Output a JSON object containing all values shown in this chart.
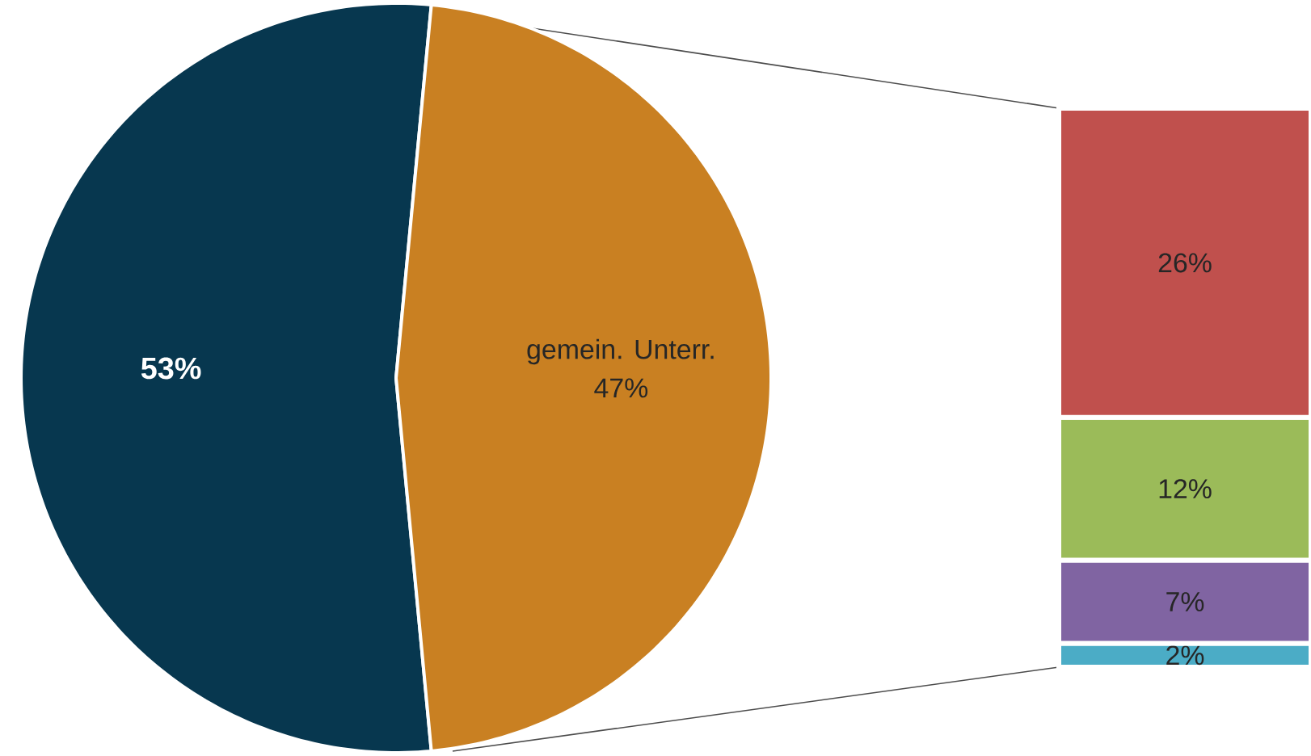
{
  "chart_data": [
    {
      "type": "pie",
      "categories": [
        null,
        "gemein. Unterr."
      ],
      "values": [
        53,
        47
      ],
      "colors": [
        "#07374f",
        "#c98022"
      ],
      "value_labels": [
        "53%",
        "47%"
      ]
    },
    {
      "type": "bar",
      "stacked": true,
      "categories": [
        null
      ],
      "series": [
        {
          "color": "#4bacc6",
          "values": [
            2
          ],
          "value_labels": [
            "2%"
          ]
        },
        {
          "color": "#8064a2",
          "values": [
            7
          ],
          "value_labels": [
            "7%"
          ]
        },
        {
          "color": "#9bbb59",
          "values": [
            12
          ],
          "value_labels": [
            "12%"
          ]
        },
        {
          "color": "#c0504d",
          "values": [
            26
          ],
          "value_labels": [
            "26%"
          ]
        }
      ]
    }
  ]
}
